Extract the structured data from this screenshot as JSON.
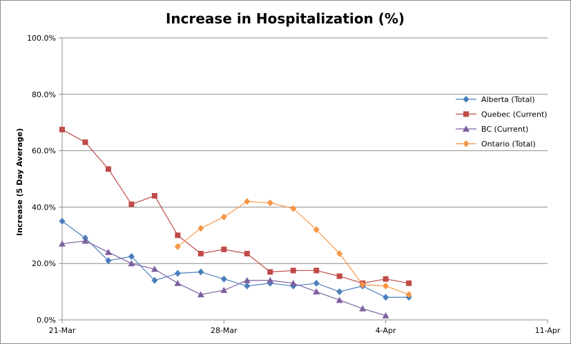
{
  "chart_data": {
    "type": "line",
    "title": "Increase in Hospitalization (%)",
    "xlabel": "",
    "ylabel": "Increase (5 Day Average)",
    "x_type": "date",
    "xlim": [
      "2020-03-21",
      "2020-04-11"
    ],
    "ylim": [
      0,
      100
    ],
    "x_ticks": [
      "21-Mar",
      "28-Mar",
      "4-Apr",
      "11-Apr"
    ],
    "y_ticks": [
      "0.0%",
      "20.0%",
      "40.0%",
      "60.0%",
      "80.0%",
      "100.0%"
    ],
    "grid": "horizontal",
    "legend_position": "right",
    "series": [
      {
        "name": "Alberta (Total)",
        "color": "#4a7ebb",
        "marker": "diamond",
        "x": [
          "2020-03-21",
          "2020-03-22",
          "2020-03-23",
          "2020-03-24",
          "2020-03-25",
          "2020-03-26",
          "2020-03-27",
          "2020-03-28",
          "2020-03-29",
          "2020-03-30",
          "2020-03-31",
          "2020-04-01",
          "2020-04-02",
          "2020-04-03",
          "2020-04-04",
          "2020-04-05"
        ],
        "values": [
          35.0,
          29.0,
          21.0,
          22.5,
          14.0,
          16.5,
          17.0,
          14.5,
          12.0,
          13.0,
          12.0,
          13.0,
          10.0,
          12.0,
          8.0,
          8.0
        ]
      },
      {
        "name": "Quebec (Current)",
        "color": "#be4b48",
        "marker": "square",
        "x": [
          "2020-03-21",
          "2020-03-22",
          "2020-03-23",
          "2020-03-24",
          "2020-03-25",
          "2020-03-26",
          "2020-03-27",
          "2020-03-28",
          "2020-03-29",
          "2020-03-30",
          "2020-03-31",
          "2020-04-01",
          "2020-04-02",
          "2020-04-03",
          "2020-04-04",
          "2020-04-05"
        ],
        "values": [
          67.5,
          63.0,
          53.5,
          41.0,
          44.0,
          30.0,
          23.5,
          25.0,
          23.5,
          17.0,
          17.5,
          17.5,
          15.5,
          13.0,
          14.5,
          13.0
        ]
      },
      {
        "name": "BC (Current)",
        "color": "#7d60a0",
        "marker": "triangle",
        "x": [
          "2020-03-21",
          "2020-03-22",
          "2020-03-23",
          "2020-03-24",
          "2020-03-25",
          "2020-03-26",
          "2020-03-27",
          "2020-03-28",
          "2020-03-29",
          "2020-03-30",
          "2020-03-31",
          "2020-04-01",
          "2020-04-02",
          "2020-04-03",
          "2020-04-04"
        ],
        "values": [
          27.0,
          28.0,
          24.0,
          20.0,
          18.0,
          13.0,
          9.0,
          10.5,
          14.0,
          14.0,
          13.0,
          10.0,
          7.0,
          4.0,
          1.5
        ]
      },
      {
        "name": "Ontario (Total)",
        "color": "#f79646",
        "marker": "diamond",
        "x": [
          "2020-03-26",
          "2020-03-27",
          "2020-03-28",
          "2020-03-29",
          "2020-03-30",
          "2020-03-31",
          "2020-04-01",
          "2020-04-02",
          "2020-04-03",
          "2020-04-04",
          "2020-04-05"
        ],
        "values": [
          26.0,
          32.5,
          36.5,
          42.0,
          41.5,
          39.5,
          32.0,
          23.5,
          12.5,
          12.0,
          9.0
        ]
      }
    ]
  }
}
